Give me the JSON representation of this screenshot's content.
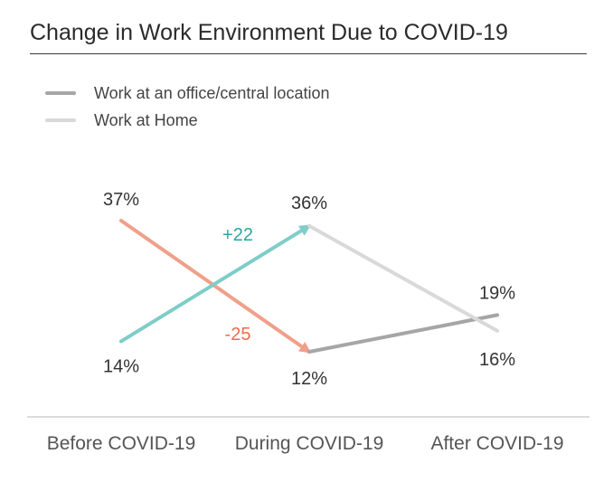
{
  "chart_data": {
    "type": "line",
    "title": "Change in Work Environment Due to COVID-19",
    "categories": [
      "Before COVID-19",
      "During COVID-19",
      "After COVID-19"
    ],
    "series": [
      {
        "name": "Work at an office/central location",
        "values": [
          37,
          12,
          19
        ],
        "labels": [
          "37%",
          "12%",
          "19%"
        ],
        "color": "#a6a6a6"
      },
      {
        "name": "Work at Home",
        "values": [
          14,
          36,
          16
        ],
        "labels": [
          "14%",
          "36%",
          "16%"
        ],
        "color": "#d9d9d9"
      }
    ],
    "change_annotations": [
      {
        "label": "+22",
        "color": "#2aa6a0",
        "arrow_color": "#7ecdc8",
        "series": 1,
        "from": 0,
        "to": 1
      },
      {
        "label": "-25",
        "color": "#f06a4a",
        "arrow_color": "#f0a08a",
        "series": 0,
        "from": 0,
        "to": 1
      }
    ],
    "legend_position": "top-left",
    "grid": false
  }
}
